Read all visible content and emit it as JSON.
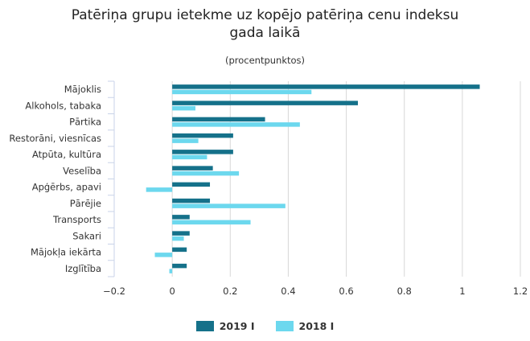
{
  "colors": {
    "series_2019": "#15718a",
    "series_2018": "#6cd8ee",
    "grid": "#d8d8d8",
    "axis": "#c8d3e8"
  },
  "chart_data": {
    "type": "bar",
    "orientation": "horizontal",
    "title_lines": [
      "Patēriņa grupu ietekme uz kopējo patēriņa cenu indeksu",
      "gada laikā"
    ],
    "subtitle": "(procentpunktos)",
    "categories": [
      "Mājoklis",
      "Alkohols, tabaka",
      "Pārtika",
      "Restorāni, viesnīcas",
      "Atpūta, kultūra",
      "Veselība",
      "Apģērbs, apavi",
      "Pārējie",
      "Transports",
      "Sakari",
      "Mājokļa iekārta",
      "Izglītība"
    ],
    "series": [
      {
        "name": "2019 I",
        "values": [
          1.06,
          0.64,
          0.32,
          0.21,
          0.21,
          0.14,
          0.13,
          0.13,
          0.06,
          0.06,
          0.05,
          0.05
        ]
      },
      {
        "name": "2018 I",
        "values": [
          0.48,
          0.08,
          0.44,
          0.09,
          0.12,
          0.23,
          -0.09,
          0.39,
          0.27,
          0.04,
          -0.06,
          -0.01
        ]
      }
    ],
    "xlim": [
      -0.2,
      1.2
    ],
    "xticks": [
      -0.2,
      0,
      0.2,
      0.4,
      0.6,
      0.8,
      1,
      1.2
    ],
    "xtick_labels": [
      "−0.2",
      "0",
      "0.2",
      "0.4",
      "0.6",
      "0.8",
      "1",
      "1.2"
    ],
    "grid": true,
    "legend_position": "bottom-center"
  }
}
